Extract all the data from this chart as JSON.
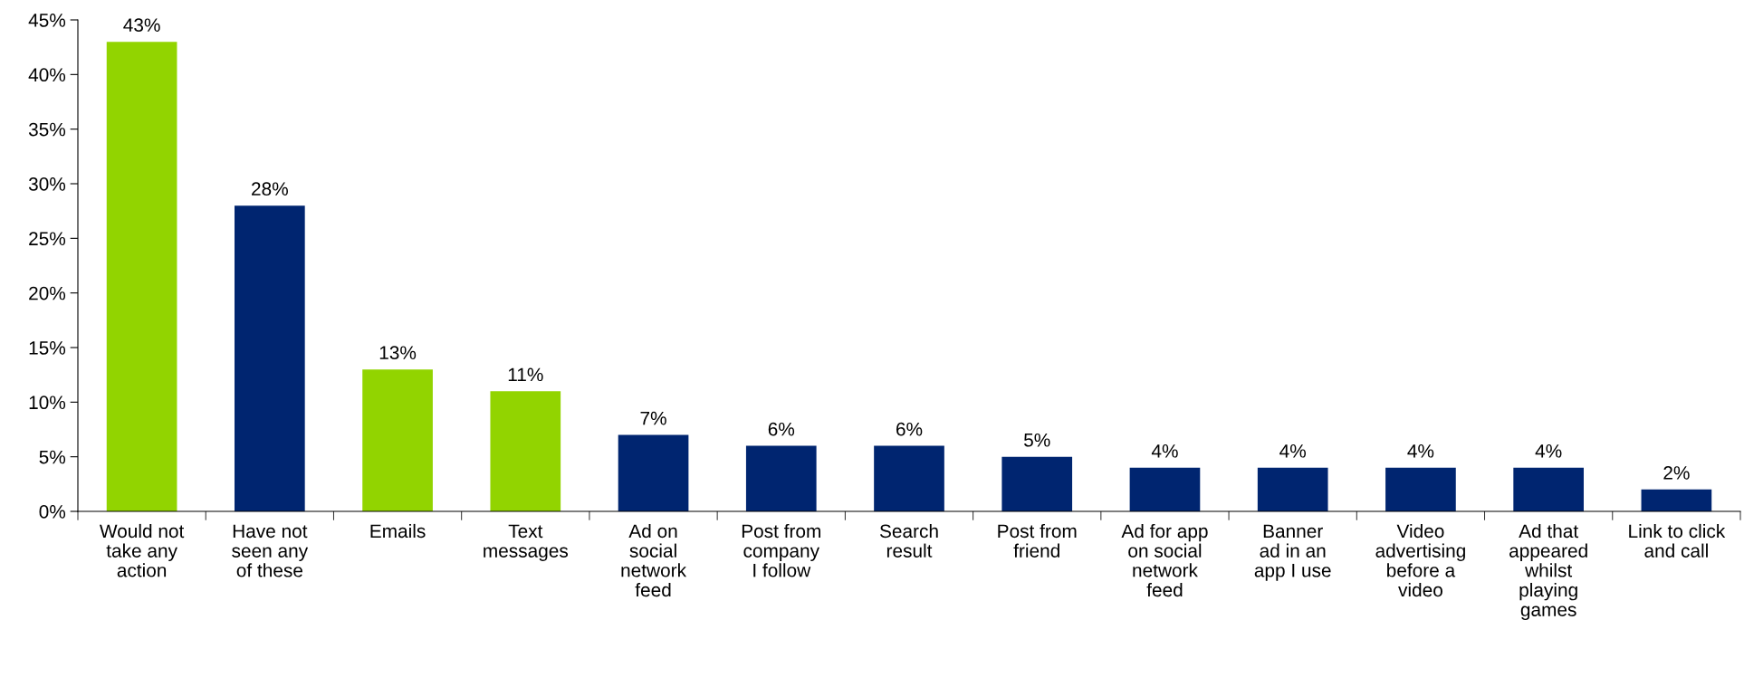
{
  "chart_data": {
    "type": "bar",
    "categories": [
      "Would not\ntake any\naction",
      "Have not\nseen any\nof these",
      "Emails",
      "Text\nmessages",
      "Ad on\nsocial\nnetwork\nfeed",
      "Post from\ncompany\nI follow",
      "Search\nresult",
      "Post from\nfriend",
      "Ad for app\non social\nnetwork\nfeed",
      "Banner\nad in an\napp I use",
      "Video\nadvertising\nbefore a\nvideo",
      "Ad that\nappeared\nwhilst\nplaying\ngames",
      "Link to click\nand call"
    ],
    "values": [
      43,
      28,
      13,
      11,
      7,
      6,
      6,
      5,
      4,
      4,
      4,
      4,
      2
    ],
    "colors": [
      "#92d400",
      "#002570",
      "#92d400",
      "#92d400",
      "#002570",
      "#002570",
      "#002570",
      "#002570",
      "#002570",
      "#002570",
      "#002570",
      "#002570",
      "#002570"
    ],
    "value_labels": [
      "43%",
      "28%",
      "13%",
      "11%",
      "7%",
      "6%",
      "6%",
      "5%",
      "4%",
      "4%",
      "4%",
      "4%",
      "2%"
    ],
    "ylim": [
      0,
      45
    ],
    "yticks": [
      {
        "value": 0,
        "label": "0%"
      },
      {
        "value": 5,
        "label": "5%"
      },
      {
        "value": 10,
        "label": "10%"
      },
      {
        "value": 15,
        "label": "15%"
      },
      {
        "value": 20,
        "label": "20%"
      },
      {
        "value": 25,
        "label": "25%"
      },
      {
        "value": 30,
        "label": "30%"
      },
      {
        "value": 35,
        "label": "35%"
      },
      {
        "value": 40,
        "label": "40%"
      },
      {
        "value": 45,
        "label": "45%"
      }
    ],
    "grid": false,
    "legend": false
  }
}
